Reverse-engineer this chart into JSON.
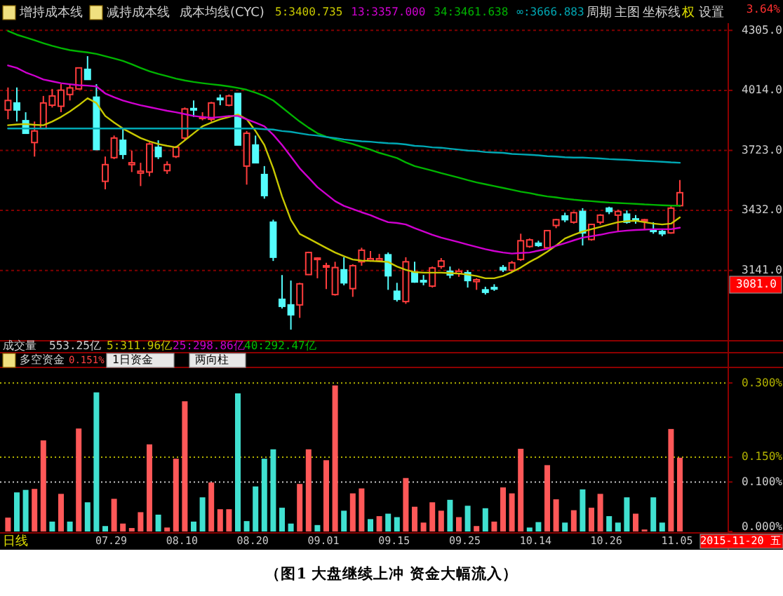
{
  "chart_data": [
    {
      "type": "candlestick",
      "categories": [
        null,
        null,
        null,
        null,
        null,
        null,
        null,
        null,
        null,
        null,
        null,
        null,
        null,
        null,
        null,
        null,
        null,
        null,
        null,
        null,
        null,
        null,
        null,
        null,
        null,
        null,
        null,
        null,
        null,
        null,
        null,
        null,
        null,
        null,
        null,
        null,
        null,
        null,
        null,
        null,
        null,
        null,
        null,
        null,
        null,
        null,
        null,
        null,
        null,
        null,
        null,
        null,
        null,
        null,
        null,
        null,
        null,
        null,
        null,
        null,
        null,
        null,
        null,
        null,
        null,
        null,
        null,
        null,
        null,
        null,
        null,
        null,
        null,
        null,
        null,
        null,
        null
      ],
      "ohlc": [
        [
          3919,
          4028,
          3874,
          3965
        ],
        [
          3953,
          4028,
          3863,
          3919
        ],
        [
          3867,
          3908,
          3806,
          3806
        ],
        [
          3761,
          3863,
          3693,
          3817
        ],
        [
          3829,
          3987,
          3829,
          3953
        ],
        [
          3942,
          4021,
          3931,
          3987
        ],
        [
          3937,
          4044,
          3908,
          4015
        ],
        [
          3994,
          4044,
          3965,
          4026
        ],
        [
          4021,
          4123,
          4021,
          4123
        ],
        [
          4116,
          4180,
          4067,
          4067
        ],
        [
          3981,
          4044,
          3727,
          3727
        ],
        [
          3573,
          3693,
          3534,
          3654
        ],
        [
          3688,
          3795,
          3681,
          3783
        ],
        [
          3772,
          3829,
          3681,
          3704
        ],
        [
          3654,
          3722,
          3618,
          3663
        ],
        [
          3613,
          3663,
          3550,
          3622
        ],
        [
          3618,
          3761,
          3597,
          3754
        ],
        [
          3738,
          3772,
          3681,
          3693
        ],
        [
          3625,
          3670,
          3609,
          3654
        ],
        [
          3693,
          3745,
          3686,
          3738
        ],
        [
          3783,
          3931,
          3772,
          3924
        ],
        [
          3926,
          3965,
          3885,
          3919
        ],
        [
          3878,
          3908,
          3869,
          3885
        ],
        [
          3874,
          3958,
          3863,
          3953
        ],
        [
          3976,
          3994,
          3942,
          3969
        ],
        [
          3942,
          3994,
          3937,
          3987
        ],
        [
          3999,
          3999,
          3749,
          3749
        ],
        [
          3647,
          3817,
          3557,
          3806
        ],
        [
          3749,
          3795,
          3663,
          3663
        ],
        [
          3606,
          3647,
          3489,
          3504
        ],
        [
          3375,
          3387,
          3187,
          3205
        ],
        [
          3001,
          3119,
          2956,
          2967
        ],
        [
          2974,
          3092,
          2854,
          2926
        ],
        [
          2974,
          3081,
          2911,
          3076
        ],
        [
          3121,
          3232,
          3119,
          3228
        ],
        [
          3194,
          3205,
          3103,
          3201
        ],
        [
          3160,
          3178,
          3051,
          3164
        ],
        [
          3024,
          3183,
          3019,
          3155
        ],
        [
          3144,
          3205,
          3069,
          3081
        ],
        [
          3053,
          3171,
          3013,
          3164
        ],
        [
          3183,
          3251,
          3164,
          3239
        ],
        [
          3189,
          3235,
          3183,
          3198
        ],
        [
          3189,
          3221,
          3183,
          3198
        ],
        [
          3217,
          3228,
          3047,
          3115
        ],
        [
          3040,
          3081,
          2990,
          3001
        ],
        [
          2990,
          3205,
          2979,
          3183
        ],
        [
          3133,
          3183,
          3081,
          3085
        ],
        [
          3092,
          3119,
          3069,
          3087
        ],
        [
          3065,
          3160,
          3058,
          3153
        ],
        [
          3160,
          3201,
          3149,
          3187
        ],
        [
          3137,
          3160,
          3103,
          3119
        ],
        [
          3126,
          3149,
          3110,
          3137
        ],
        [
          3130,
          3142,
          3058,
          3092
        ],
        [
          3087,
          3103,
          3047,
          3096
        ],
        [
          3047,
          3062,
          3024,
          3035
        ],
        [
          3058,
          3074,
          3042,
          3051
        ],
        [
          3155,
          3167,
          3133,
          3144
        ],
        [
          3142,
          3187,
          3133,
          3178
        ],
        [
          3194,
          3319,
          3187,
          3285
        ],
        [
          3257,
          3296,
          3251,
          3289
        ],
        [
          3273,
          3285,
          3255,
          3262
        ],
        [
          3251,
          3337,
          3246,
          3334
        ],
        [
          3359,
          3391,
          3346,
          3387
        ],
        [
          3405,
          3421,
          3375,
          3387
        ],
        [
          3375,
          3427,
          3368,
          3421
        ],
        [
          3427,
          3443,
          3262,
          3323
        ],
        [
          3291,
          3368,
          3285,
          3364
        ],
        [
          3375,
          3414,
          3364,
          3409
        ],
        [
          3443,
          3450,
          3414,
          3427
        ],
        [
          3409,
          3436,
          3330,
          3427
        ],
        [
          3414,
          3432,
          3368,
          3375
        ],
        [
          3391,
          3409,
          3368,
          3382
        ],
        [
          3380,
          3391,
          3341,
          3387
        ],
        [
          3337,
          3375,
          3319,
          3330
        ],
        [
          3330,
          3341,
          3307,
          3319
        ],
        [
          3323,
          3455,
          3319,
          3443
        ],
        [
          3455,
          3579,
          3450,
          3518
        ]
      ],
      "colors": [
        "#ff3c3c",
        "#54fcfc",
        "#54fcfc",
        "#ff3c3c",
        "#ff3c3c",
        "#ff3c3c",
        "#ff3c3c",
        "#ff3c3c",
        "#ff3c3c",
        "#54fcfc",
        "#54fcfc",
        "#ff3c3c",
        "#ff3c3c",
        "#54fcfc",
        "#ff3c3c",
        "#ff3c3c",
        "#ff3c3c",
        "#54fcfc",
        "#ff3c3c",
        "#ff3c3c",
        "#ff3c3c",
        "#54fcfc",
        "#ff3c3c",
        "#ff3c3c",
        "#54fcfc",
        "#ff3c3c",
        "#54fcfc",
        "#ff3c3c",
        "#54fcfc",
        "#54fcfc",
        "#54fcfc",
        "#54fcfc",
        "#54fcfc",
        "#ff3c3c",
        "#ff3c3c",
        "#ff3c3c",
        "#ff3c3c",
        "#ff3c3c",
        "#54fcfc",
        "#ff3c3c",
        "#ff3c3c",
        "#ff3c3c",
        "#ff3c3c",
        "#54fcfc",
        "#54fcfc",
        "#ff3c3c",
        "#54fcfc",
        "#54fcfc",
        "#ff3c3c",
        "#ff3c3c",
        "#54fcfc",
        "#ff3c3c",
        "#54fcfc",
        "#ff3c3c",
        "#54fcfc",
        "#54fcfc",
        "#54fcfc",
        "#ff3c3c",
        "#ff3c3c",
        "#ff3c3c",
        "#54fcfc",
        "#ff3c3c",
        "#ff3c3c",
        "#54fcfc",
        "#ff3c3c",
        "#54fcfc",
        "#ff3c3c",
        "#ff3c3c",
        "#54fcfc",
        "#ff3c3c",
        "#54fcfc",
        "#54fcfc",
        "#ff3c3c",
        "#54fcfc",
        "#54fcfc",
        "#ff3c3c",
        "#ff3c3c"
      ],
      "series": [
        {
          "type": "line",
          "name": "5:3400.735",
          "color": "#c8c800",
          "values": [
            3845,
            3849,
            3851,
            3847,
            3845,
            3863,
            3885,
            3912,
            3942,
            3976,
            3953,
            3890,
            3858,
            3829,
            3806,
            3783,
            3767,
            3754,
            3745,
            3738,
            3772,
            3806,
            3840,
            3858,
            3874,
            3885,
            3897,
            3874,
            3817,
            3749,
            3636,
            3500,
            3386,
            3318,
            3296,
            3273,
            3250,
            3228,
            3210,
            3194,
            3189,
            3187,
            3185,
            3182,
            3160,
            3144,
            3133,
            3130,
            3130,
            3130,
            3128,
            3126,
            3121,
            3114,
            3103,
            3103,
            3114,
            3133,
            3155,
            3182,
            3205,
            3232,
            3262,
            3296,
            3314,
            3330,
            3341,
            3352,
            3364,
            3375,
            3380,
            3382,
            3375,
            3368,
            3364,
            3368,
            3398
          ]
        },
        {
          "type": "line",
          "name": "13:3357.000",
          "color": "#d000d0",
          "values": [
            4135,
            4123,
            4101,
            4085,
            4067,
            4058,
            4049,
            4044,
            4039,
            4037,
            4033,
            3999,
            3981,
            3965,
            3953,
            3942,
            3933,
            3924,
            3915,
            3908,
            3899,
            3890,
            3885,
            3881,
            3885,
            3890,
            3890,
            3874,
            3858,
            3840,
            3799,
            3749,
            3693,
            3636,
            3591,
            3545,
            3511,
            3477,
            3454,
            3439,
            3423,
            3409,
            3391,
            3375,
            3371,
            3364,
            3346,
            3330,
            3314,
            3300,
            3289,
            3278,
            3266,
            3255,
            3244,
            3235,
            3228,
            3223,
            3226,
            3228,
            3237,
            3246,
            3260,
            3273,
            3287,
            3300,
            3307,
            3314,
            3323,
            3330,
            3334,
            3337,
            3339,
            3341,
            3341,
            3341,
            3348
          ]
        },
        {
          "type": "line",
          "name": "34:3461.638",
          "color": "#00b400",
          "values": [
            4302,
            4284,
            4271,
            4257,
            4243,
            4230,
            4219,
            4209,
            4203,
            4198,
            4191,
            4180,
            4169,
            4157,
            4141,
            4123,
            4107,
            4094,
            4083,
            4071,
            4062,
            4055,
            4049,
            4044,
            4039,
            4033,
            4026,
            4017,
            4003,
            3987,
            3965,
            3931,
            3897,
            3863,
            3833,
            3806,
            3790,
            3776,
            3765,
            3754,
            3740,
            3727,
            3711,
            3699,
            3686,
            3665,
            3647,
            3636,
            3625,
            3613,
            3602,
            3591,
            3579,
            3568,
            3559,
            3550,
            3541,
            3532,
            3523,
            3516,
            3507,
            3500,
            3495,
            3489,
            3484,
            3480,
            3477,
            3473,
            3470,
            3468,
            3466,
            3464,
            3461,
            3459,
            3457,
            3455,
            3455
          ]
        },
        {
          "type": "line",
          "name": "∞:3666.883",
          "color": "#00a8b4",
          "values": [
            3829,
            3829,
            3829,
            3829,
            3829,
            3829,
            3829,
            3829,
            3829,
            3829,
            3829,
            3829,
            3829,
            3829,
            3829,
            3829,
            3829,
            3829,
            3829,
            3829,
            3829,
            3829,
            3829,
            3829,
            3829,
            3829,
            3829,
            3829,
            3829,
            3826,
            3824,
            3817,
            3813,
            3806,
            3799,
            3795,
            3788,
            3783,
            3776,
            3772,
            3767,
            3765,
            3761,
            3758,
            3756,
            3752,
            3745,
            3743,
            3738,
            3736,
            3731,
            3727,
            3722,
            3720,
            3715,
            3713,
            3711,
            3706,
            3704,
            3702,
            3699,
            3695,
            3693,
            3690,
            3688,
            3688,
            3686,
            3684,
            3681,
            3679,
            3677,
            3674,
            3672,
            3670,
            3668,
            3665,
            3663
          ]
        }
      ],
      "ylim": [
        2800,
        4340
      ],
      "yticks": [
        {
          "value": 3141,
          "label": "3141.0"
        },
        {
          "value": 3432,
          "label": "3432.0"
        },
        {
          "value": 3723,
          "label": "3723.0"
        },
        {
          "value": 4014,
          "label": "4014.0"
        },
        {
          "value": 4305,
          "label": "4305.0"
        }
      ],
      "grid": "y",
      "legend": "top",
      "tick_labels": "y",
      "annotations": [
        "增持成本线",
        "减持成本线",
        "成本均线(CYC)",
        "周期",
        "主图",
        "坐标线",
        "权",
        "设置",
        "3.64%",
        "3081.0"
      ]
    },
    {
      "type": "bar",
      "categories": [
        null,
        null,
        null,
        null,
        null,
        null,
        null,
        null,
        null,
        null,
        null,
        null,
        "07.29",
        null,
        null,
        null,
        null,
        null,
        null,
        null,
        "08.10",
        null,
        null,
        null,
        null,
        null,
        null,
        null,
        "08.20",
        null,
        null,
        null,
        null,
        null,
        null,
        null,
        "09.01",
        null,
        null,
        null,
        null,
        null,
        null,
        null,
        "09.15",
        null,
        null,
        null,
        null,
        null,
        null,
        null,
        "09.25",
        null,
        null,
        null,
        null,
        null,
        null,
        null,
        "10.14",
        null,
        null,
        null,
        null,
        null,
        null,
        null,
        "10.26",
        null,
        null,
        null,
        null,
        null,
        null,
        null,
        "11.05"
      ],
      "values": [
        0.028,
        0.079,
        0.084,
        0.086,
        0.184,
        0.02,
        0.076,
        0.02,
        0.208,
        0.059,
        0.281,
        0.011,
        0.066,
        0.016,
        0.007,
        0.039,
        0.176,
        0.034,
        0.008,
        0.147,
        0.263,
        0.02,
        0.069,
        0.099,
        0.045,
        0.045,
        0.279,
        0.021,
        0.091,
        0.147,
        0.166,
        0.048,
        0.016,
        0.096,
        0.166,
        0.013,
        0.144,
        0.295,
        0.042,
        0.077,
        0.087,
        0.025,
        0.031,
        0.036,
        0.029,
        0.108,
        0.05,
        0.018,
        0.059,
        0.042,
        0.064,
        0.029,
        0.052,
        0.011,
        0.047,
        0.02,
        0.089,
        0.077,
        0.167,
        0.008,
        0.019,
        0.134,
        0.065,
        0.018,
        0.043,
        0.085,
        0.048,
        0.076,
        0.031,
        0.018,
        0.069,
        0.036,
        0.004,
        0.069,
        0.018,
        0.207,
        0.149
      ],
      "colors": [
        "#ff5858",
        "#40e0d0",
        "#40e0d0",
        "#ff5858",
        "#ff5858",
        "#40e0d0",
        "#ff5858",
        "#40e0d0",
        "#ff5858",
        "#40e0d0",
        "#40e0d0",
        "#40e0d0",
        "#ff5858",
        "#ff5858",
        "#ff5858",
        "#ff5858",
        "#ff5858",
        "#40e0d0",
        "#ff5858",
        "#ff5858",
        "#ff5858",
        "#40e0d0",
        "#40e0d0",
        "#ff5858",
        "#ff5858",
        "#ff5858",
        "#40e0d0",
        "#40e0d0",
        "#40e0d0",
        "#40e0d0",
        "#40e0d0",
        "#40e0d0",
        "#40e0d0",
        "#ff5858",
        "#ff5858",
        "#40e0d0",
        "#ff5858",
        "#ff5858",
        "#40e0d0",
        "#ff5858",
        "#ff5858",
        "#40e0d0",
        "#ff5858",
        "#40e0d0",
        "#40e0d0",
        "#ff5858",
        "#ff5858",
        "#ff5858",
        "#ff5858",
        "#ff5858",
        "#40e0d0",
        "#ff5858",
        "#40e0d0",
        "#ff5858",
        "#40e0d0",
        "#ff5858",
        "#ff5858",
        "#ff5858",
        "#ff5858",
        "#40e0d0",
        "#40e0d0",
        "#ff5858",
        "#ff5858",
        "#40e0d0",
        "#ff5858",
        "#40e0d0",
        "#ff5858",
        "#ff5858",
        "#40e0d0",
        "#40e0d0",
        "#40e0d0",
        "#ff5858",
        "#ff5858",
        "#40e0d0",
        "#40e0d0",
        "#ff5858",
        "#ff5858"
      ],
      "ylim": [
        0,
        0.33
      ],
      "yticks": [
        {
          "value": 0,
          "label": "0.000%"
        },
        {
          "value": 0.1,
          "label": "0.100%"
        },
        {
          "value": 0.15,
          "label": "0.150%"
        },
        {
          "value": 0.3,
          "label": "0.300%"
        }
      ],
      "ref_lines": [
        {
          "axis": "y",
          "value": 0.1,
          "color": "#c8c8c8",
          "line_style": "dotted"
        },
        {
          "axis": "y",
          "value": 0.15,
          "color": "#b4b400",
          "line_style": "dotted"
        },
        {
          "axis": "y",
          "value": 0.3,
          "color": "#b4b400",
          "line_style": "dotted"
        }
      ],
      "annotations": [
        "成交量",
        "553.25亿",
        "5:311.96亿",
        "25:298.86亿",
        "40:292.47亿",
        "多空资金",
        "0.151%",
        "1日资金",
        "两向柱",
        "日线",
        "2015-11-20 五",
        "（图1  大盘继续上冲  资金大幅流入）"
      ]
    }
  ]
}
